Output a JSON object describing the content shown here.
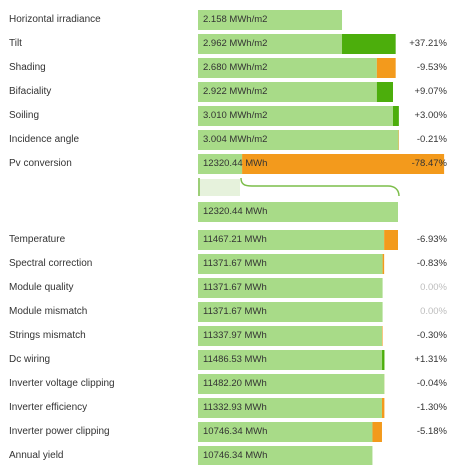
{
  "chart_data": {
    "type": "bar",
    "subtype": "loss-waterfall",
    "unit": "MWh",
    "colors": {
      "base": "#a8db88",
      "gain": "#4cae0c",
      "loss": "#f39a1c",
      "divider": "#7cbd4a"
    },
    "energy_rows": [
      {
        "label": "Horizontal irradiance",
        "value_text": "2.158 MWh/m2",
        "value": 2.158,
        "reference": 2.158,
        "change": null,
        "pct": ""
      },
      {
        "label": "Tilt",
        "value_text": "2.962 MWh/m2",
        "value": 2.962,
        "reference": 2.158,
        "change": "gain",
        "pct": "+37.21%"
      },
      {
        "label": "Shading",
        "value_text": "2.680 MWh/m2",
        "value": 2.68,
        "reference": 2.962,
        "change": "loss",
        "pct": "-9.53%"
      },
      {
        "label": "Bifaciality",
        "value_text": "2.922 MWh/m2",
        "value": 2.922,
        "reference": 2.68,
        "change": "gain",
        "pct": "+9.07%"
      },
      {
        "label": "Soiling",
        "value_text": "3.010 MWh/m2",
        "value": 3.01,
        "reference": 2.922,
        "change": "gain",
        "pct": "+3.00%"
      },
      {
        "label": "Incidence angle",
        "value_text": "3.004 MWh/m2",
        "value": 3.004,
        "reference": 3.01,
        "change": "loss",
        "pct": "-0.21%"
      },
      {
        "label": "Pv conversion",
        "value_text": "12320.44 MWh",
        "value": 3.004,
        "reference": 3.004,
        "change": "conversion",
        "pct": "-78.47%"
      }
    ],
    "conversion_row": {
      "value_text": "12320.44 MWh",
      "value": 12320.44
    },
    "power_rows": [
      {
        "label": "Temperature",
        "value_text": "11467.21 MWh",
        "value": 11467.21,
        "reference": 12320.44,
        "change": "loss",
        "pct": "-6.93%"
      },
      {
        "label": "Spectral correction",
        "value_text": "11371.67 MWh",
        "value": 11371.67,
        "reference": 11467.21,
        "change": "loss",
        "pct": "-0.83%"
      },
      {
        "label": "Module quality",
        "value_text": "11371.67 MWh",
        "value": 11371.67,
        "reference": 11371.67,
        "change": null,
        "pct": "0.00%"
      },
      {
        "label": "Module mismatch",
        "value_text": "11371.67 MWh",
        "value": 11371.67,
        "reference": 11371.67,
        "change": null,
        "pct": "0.00%"
      },
      {
        "label": "Strings mismatch",
        "value_text": "11337.97 MWh",
        "value": 11337.97,
        "reference": 11371.67,
        "change": "loss",
        "pct": "-0.30%"
      },
      {
        "label": "Dc wiring",
        "value_text": "11486.53 MWh",
        "value": 11486.53,
        "reference": 11337.97,
        "change": "gain",
        "pct": "+1.31%"
      },
      {
        "label": "Inverter voltage clipping",
        "value_text": "11482.20 MWh",
        "value": 11482.2,
        "reference": 11486.53,
        "change": "loss",
        "pct": "-0.04%"
      },
      {
        "label": "Inverter efficiency",
        "value_text": "11332.93 MWh",
        "value": 11332.93,
        "reference": 11482.2,
        "change": "loss",
        "pct": "-1.30%"
      },
      {
        "label": "Inverter power clipping",
        "value_text": "10746.34 MWh",
        "value": 10746.34,
        "reference": 11332.93,
        "change": "loss",
        "pct": "-5.18%"
      },
      {
        "label": "Annual yield",
        "value_text": "10746.34 MWh",
        "value": 10746.34,
        "reference": 10746.34,
        "change": null,
        "pct": ""
      }
    ]
  }
}
